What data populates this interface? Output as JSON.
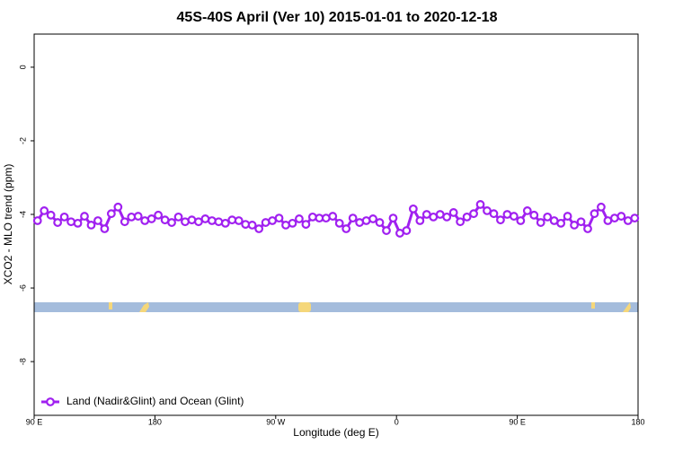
{
  "chart_data": {
    "type": "line",
    "title": "45S-40S April (Ver 10)   2015-01-01 to 2020-12-18",
    "x_label": "Longitude (deg E)",
    "y_label": "XCO2 - MLO trend (ppm)",
    "x": [
      92.5,
      97.5,
      102.5,
      107.5,
      112.5,
      117.5,
      122.5,
      127.5,
      132.5,
      137.5,
      142.5,
      147.5,
      152.5,
      157.5,
      162.5,
      167.5,
      172.5,
      177.5,
      182.5,
      187.5,
      192.5,
      197.5,
      202.5,
      207.5,
      212.5,
      217.5,
      222.5,
      227.5,
      232.5,
      237.5,
      242.5,
      247.5,
      252.5,
      257.5,
      262.5,
      267.5,
      272.5,
      277.5,
      282.5,
      287.5,
      292.5,
      297.5,
      302.5,
      307.5,
      312.5,
      317.5,
      322.5,
      327.5,
      332.5,
      337.5,
      342.5,
      347.5,
      352.5,
      357.5,
      362.5,
      367.5,
      372.5,
      377.5,
      382.5,
      387.5,
      392.5,
      397.5,
      402.5,
      407.5,
      412.5,
      417.5,
      422.5,
      427.5,
      432.5,
      437.5,
      442.5,
      447.5,
      452.5,
      457.5,
      462.5,
      467.5,
      472.5,
      477.5,
      482.5,
      487.5,
      492.5,
      497.5,
      502.5,
      507.5,
      512.5,
      517.5,
      522.5,
      527.5,
      532.5,
      537.5
    ],
    "series": [
      {
        "name": "Land (Nadir&Glint) and Ocean (Glint)",
        "color": "#a020f0",
        "values": [
          -4.17,
          -3.9,
          -4.02,
          -4.22,
          -4.07,
          -4.2,
          -4.24,
          -4.05,
          -4.29,
          -4.17,
          -4.39,
          -3.98,
          -3.8,
          -4.2,
          -4.07,
          -4.05,
          -4.17,
          -4.12,
          -4.02,
          -4.15,
          -4.22,
          -4.07,
          -4.2,
          -4.15,
          -4.2,
          -4.12,
          -4.17,
          -4.2,
          -4.24,
          -4.15,
          -4.17,
          -4.27,
          -4.29,
          -4.39,
          -4.22,
          -4.17,
          -4.1,
          -4.29,
          -4.24,
          -4.12,
          -4.27,
          -4.07,
          -4.1,
          -4.1,
          -4.05,
          -4.24,
          -4.39,
          -4.1,
          -4.22,
          -4.17,
          -4.12,
          -4.22,
          -4.44,
          -4.1,
          -4.51,
          -4.44,
          -3.85,
          -4.17,
          -4.0,
          -4.07,
          -4.0,
          -4.07,
          -3.95,
          -4.2,
          -4.07,
          -3.98,
          -3.73,
          -3.9,
          -3.98,
          -4.15,
          -4.0,
          -4.05,
          -4.17,
          -3.9,
          -4.02,
          -4.22,
          -4.07,
          -4.17,
          -4.24,
          -4.05,
          -4.29,
          -4.2,
          -4.39,
          -3.98,
          -3.8,
          -4.17,
          -4.1,
          -4.05,
          -4.17,
          -4.1
        ]
      }
    ],
    "xlim": [
      90,
      540
    ],
    "xticks": [
      {
        "value": 90,
        "label": "90 E"
      },
      180,
      {
        "value": 270,
        "label": "90 W"
      },
      {
        "value": 360,
        "label": "0"
      },
      {
        "value": 450,
        "label": "90 E"
      },
      {
        "value": 540,
        "label": "180"
      }
    ],
    "ylim": [
      0.9,
      -9.46
    ],
    "yticks": [
      0,
      -2,
      -4,
      -6,
      -8
    ],
    "legend": "bottom-left"
  }
}
